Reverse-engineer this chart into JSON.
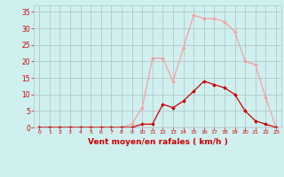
{
  "x": [
    0,
    1,
    2,
    3,
    4,
    5,
    6,
    7,
    8,
    9,
    10,
    11,
    12,
    13,
    14,
    15,
    16,
    17,
    18,
    19,
    20,
    21,
    22,
    23
  ],
  "y_rafales": [
    0,
    0,
    0,
    0,
    0,
    0,
    0,
    0,
    0,
    1,
    6,
    21,
    21,
    14,
    24,
    34,
    33,
    33,
    32,
    29,
    20,
    19,
    9,
    0
  ],
  "y_moyen": [
    0,
    0,
    0,
    0,
    0,
    0,
    0,
    0,
    0,
    0,
    1,
    1,
    7,
    6,
    8,
    11,
    14,
    13,
    12,
    10,
    5,
    2,
    1,
    0
  ],
  "color_rafales": "#f4a0a0",
  "color_moyen": "#cc0000",
  "bg_color": "#d0f0f0",
  "grid_color": "#b0c8c8",
  "xlabel": "Vent moyen/en rafales ( km/h )",
  "xlabel_color": "#cc0000",
  "tick_color": "#cc0000",
  "ylim": [
    0,
    37
  ],
  "yticks": [
    0,
    5,
    10,
    15,
    20,
    25,
    30,
    35
  ],
  "xlim": [
    -0.5,
    23.5
  ],
  "xticks": [
    0,
    1,
    2,
    3,
    4,
    5,
    6,
    7,
    8,
    9,
    10,
    11,
    12,
    13,
    14,
    15,
    16,
    17,
    18,
    19,
    20,
    21,
    22,
    23
  ]
}
